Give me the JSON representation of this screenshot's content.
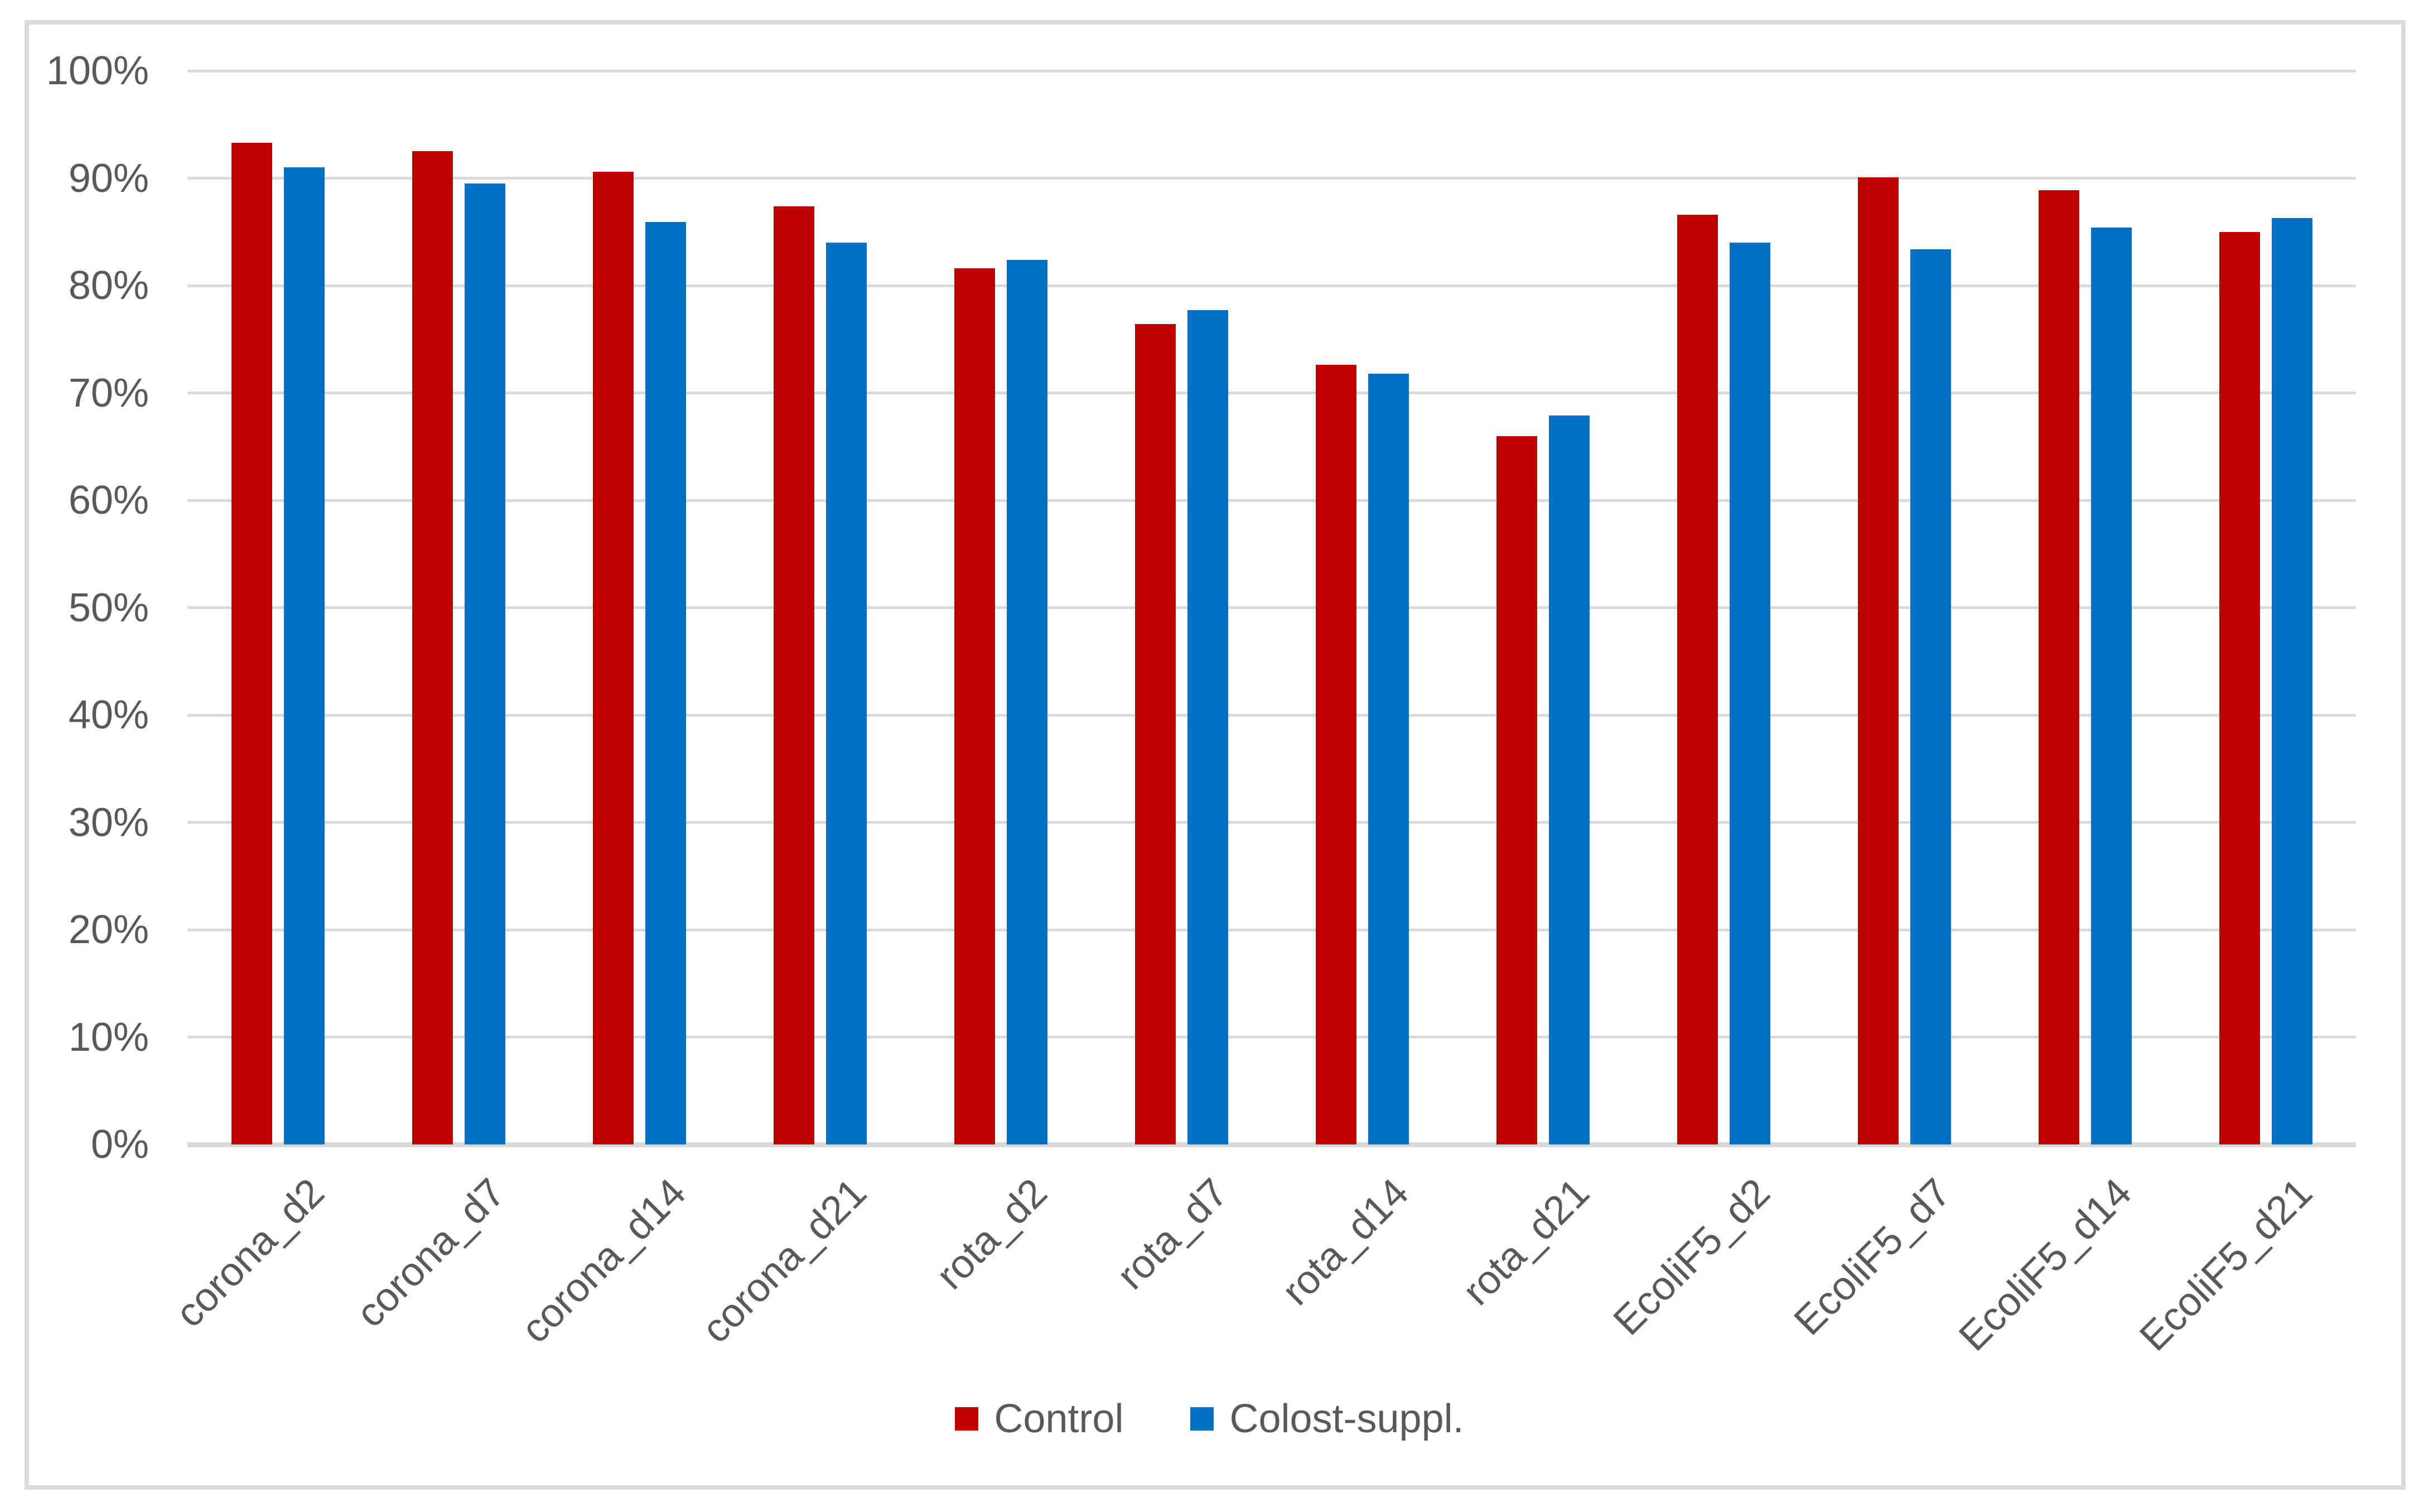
{
  "chart_data": {
    "type": "bar",
    "categories": [
      "corona_d2",
      "corona_d7",
      "corona_d14",
      "corona_d21",
      "rota_d2",
      "rota_d7",
      "rota_d14",
      "rota_d21",
      "EcoliF5_d2",
      "EcoliF5_d7",
      "EcoliF5_d14",
      "EcoliF5_d21"
    ],
    "series": [
      {
        "name": "Control",
        "color": "#C00000",
        "values": [
          93.3,
          92.5,
          90.6,
          87.4,
          81.6,
          76.4,
          72.6,
          66.0,
          86.6,
          90.1,
          88.9,
          85.0
        ]
      },
      {
        "name": "Colost-suppl.",
        "color": "#0070C0",
        "values": [
          91.0,
          89.5,
          85.9,
          84.0,
          82.4,
          77.7,
          71.8,
          67.9,
          84.0,
          83.4,
          85.4,
          86.3
        ]
      }
    ],
    "title": "",
    "xlabel": "",
    "ylabel": "",
    "ylim": [
      0,
      100
    ],
    "y_tick_step": 10,
    "y_ticks": [
      "0%",
      "10%",
      "20%",
      "30%",
      "40%",
      "50%",
      "60%",
      "70%",
      "80%",
      "90%",
      "100%"
    ],
    "grid": true,
    "legend_position": "bottom"
  },
  "legend": {
    "items": [
      {
        "label": "Control",
        "color": "#C00000"
      },
      {
        "label": "Colost-suppl.",
        "color": "#0070C0"
      }
    ]
  },
  "colors": {
    "gridline": "#D9D9D9",
    "axis_text": "#595959",
    "chart_border": "#D9D9D9",
    "background": "#FFFFFF",
    "series_control": "#C00000",
    "series_colost": "#0070C0"
  }
}
